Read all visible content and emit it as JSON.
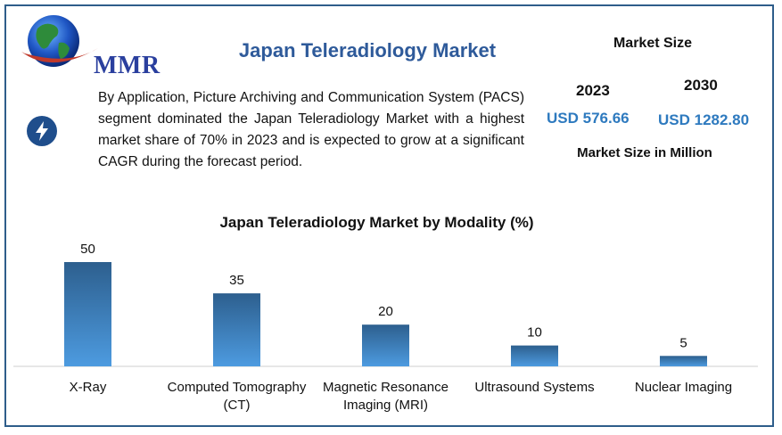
{
  "logo": {
    "text": "MMR"
  },
  "header": {
    "title": "Japan Teleradiology Market"
  },
  "summary": "By Application, Picture Archiving and Communication System (PACS) segment dominated the Japan Teleradiology Market with a highest market share of 70% in 2023 and is expected to grow at a significant CAGR during the forecast period.",
  "market_size": {
    "title": "Market Size",
    "year_a": "2023",
    "value_a": "USD 576.66",
    "year_b": "2030",
    "value_b": "USD 1282.80",
    "unit": "Market Size in Million"
  },
  "colors": {
    "accent": "#2e7abf",
    "title": "#2e5a9a",
    "bar_top": "#2d5f8e",
    "bar_bottom": "#4d9be0",
    "frame": "#2e5d8a"
  },
  "icons": {
    "summary_icon": "lightning-bolt-icon",
    "logo_icon": "globe-icon"
  },
  "chart_data": {
    "type": "bar",
    "title": "Japan Teleradiology Market by Modality (%)",
    "categories": [
      "X-Ray",
      "Computed Tomography (CT)",
      "Magnetic Resonance Imaging (MRI)",
      "Ultrasound Systems",
      "Nuclear Imaging"
    ],
    "category_lines": [
      [
        "X-Ray"
      ],
      [
        "Computed Tomography",
        "(CT)"
      ],
      [
        "Magnetic Resonance",
        "Imaging (MRI)"
      ],
      [
        "Ultrasound Systems"
      ],
      [
        "Nuclear Imaging"
      ]
    ],
    "values": [
      50,
      35,
      20,
      10,
      5
    ],
    "data_labels": [
      "50",
      "35",
      "20",
      "10",
      "5"
    ],
    "ylim": [
      0,
      50
    ],
    "grid": false,
    "legend": "none"
  }
}
